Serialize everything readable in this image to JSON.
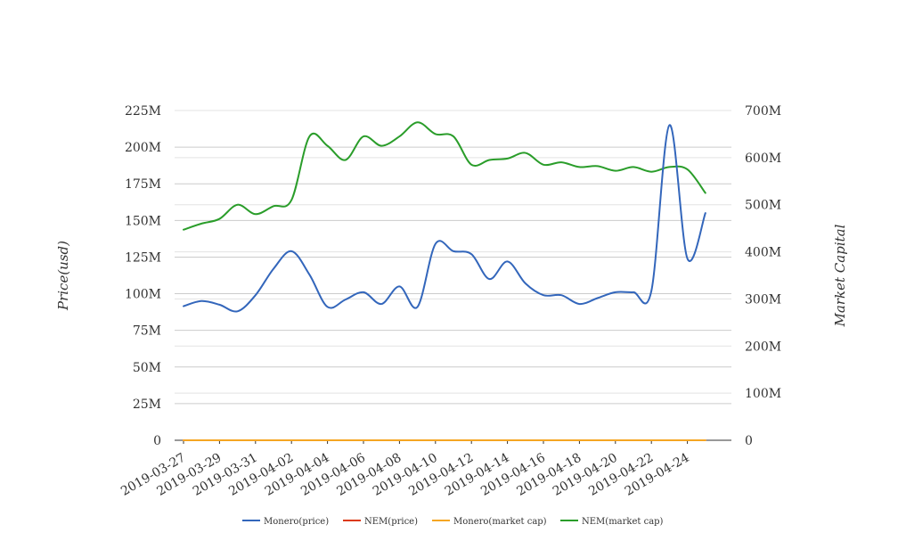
{
  "chart_data": {
    "type": "line",
    "title": "",
    "ylabel_left": "Price(usd)",
    "ylabel_right": "Market Capital",
    "ylim_left": [
      0,
      225000000
    ],
    "ylim_right": [
      0,
      700000000
    ],
    "yticks_left": [
      "0",
      "25M",
      "50M",
      "75M",
      "100M",
      "125M",
      "150M",
      "175M",
      "200M",
      "225M"
    ],
    "yticks_right": [
      "0",
      "100M",
      "200M",
      "300M",
      "400M",
      "500M",
      "600M",
      "700M"
    ],
    "x": [
      "2019-03-27",
      "2019-03-28",
      "2019-03-29",
      "2019-03-30",
      "2019-03-31",
      "2019-04-01",
      "2019-04-02",
      "2019-04-03",
      "2019-04-04",
      "2019-04-05",
      "2019-04-06",
      "2019-04-07",
      "2019-04-08",
      "2019-04-09",
      "2019-04-10",
      "2019-04-11",
      "2019-04-12",
      "2019-04-13",
      "2019-04-14",
      "2019-04-15",
      "2019-04-16",
      "2019-04-17",
      "2019-04-18",
      "2019-04-19",
      "2019-04-20",
      "2019-04-21",
      "2019-04-22",
      "2019-04-23",
      "2019-04-24",
      "2019-04-25"
    ],
    "x_tick_labels": [
      "2019-03-27",
      "2019-03-29",
      "2019-03-31",
      "2019-04-02",
      "2019-04-04",
      "2019-04-06",
      "2019-04-08",
      "2019-04-10",
      "2019-04-12",
      "2019-04-14",
      "2019-04-16",
      "2019-04-18",
      "2019-04-20",
      "2019-04-22",
      "2019-04-24"
    ],
    "legend_position": "bottom",
    "grid": true,
    "series": [
      {
        "name": "Monero(price)",
        "axis": "left",
        "color": "#3366bb",
        "values": [
          91500000,
          95000000,
          92500000,
          88000000,
          99000000,
          117000000,
          129000000,
          113000000,
          91000000,
          96000000,
          101000000,
          93000000,
          105000000,
          91000000,
          134000000,
          129000000,
          127000000,
          110000000,
          122000000,
          107000000,
          99000000,
          99000000,
          93000000,
          97000000,
          101000000,
          101000000,
          102000000,
          215000000,
          124000000,
          155000000
        ]
      },
      {
        "name": "NEM(price)",
        "axis": "left",
        "color": "#dc3912",
        "values": [
          0.06,
          0.06,
          0.06,
          0.06,
          0.06,
          0.07,
          0.07,
          0.07,
          0.07,
          0.07,
          0.07,
          0.07,
          0.07,
          0.07,
          0.07,
          0.07,
          0.07,
          0.07,
          0.07,
          0.07,
          0.07,
          0.07,
          0.07,
          0.07,
          0.07,
          0.07,
          0.07,
          0.07,
          0.07,
          0.06
        ]
      },
      {
        "name": "Monero(market cap)",
        "axis": "left",
        "color": "#f5a623",
        "values": [
          0.9,
          0.9,
          0.9,
          0.9,
          1.0,
          1.1,
          1.3,
          1.2,
          1.1,
          1.1,
          1.1,
          1.1,
          1.1,
          1.1,
          1.2,
          1.2,
          1.2,
          1.1,
          1.1,
          1.1,
          1.1,
          1.1,
          1.1,
          1.1,
          1.1,
          1.1,
          1.1,
          1.1,
          1.0,
          1.0
        ]
      },
      {
        "name": "NEM(market cap)",
        "axis": "right",
        "color": "#2a9d2a",
        "values": [
          447000000,
          460000000,
          470000000,
          500000000,
          480000000,
          497000000,
          510000000,
          645000000,
          625000000,
          595000000,
          645000000,
          625000000,
          645000000,
          675000000,
          650000000,
          645000000,
          585000000,
          595000000,
          598000000,
          610000000,
          585000000,
          590000000,
          580000000,
          582000000,
          572000000,
          580000000,
          570000000,
          580000000,
          575000000,
          525000000
        ]
      }
    ]
  }
}
